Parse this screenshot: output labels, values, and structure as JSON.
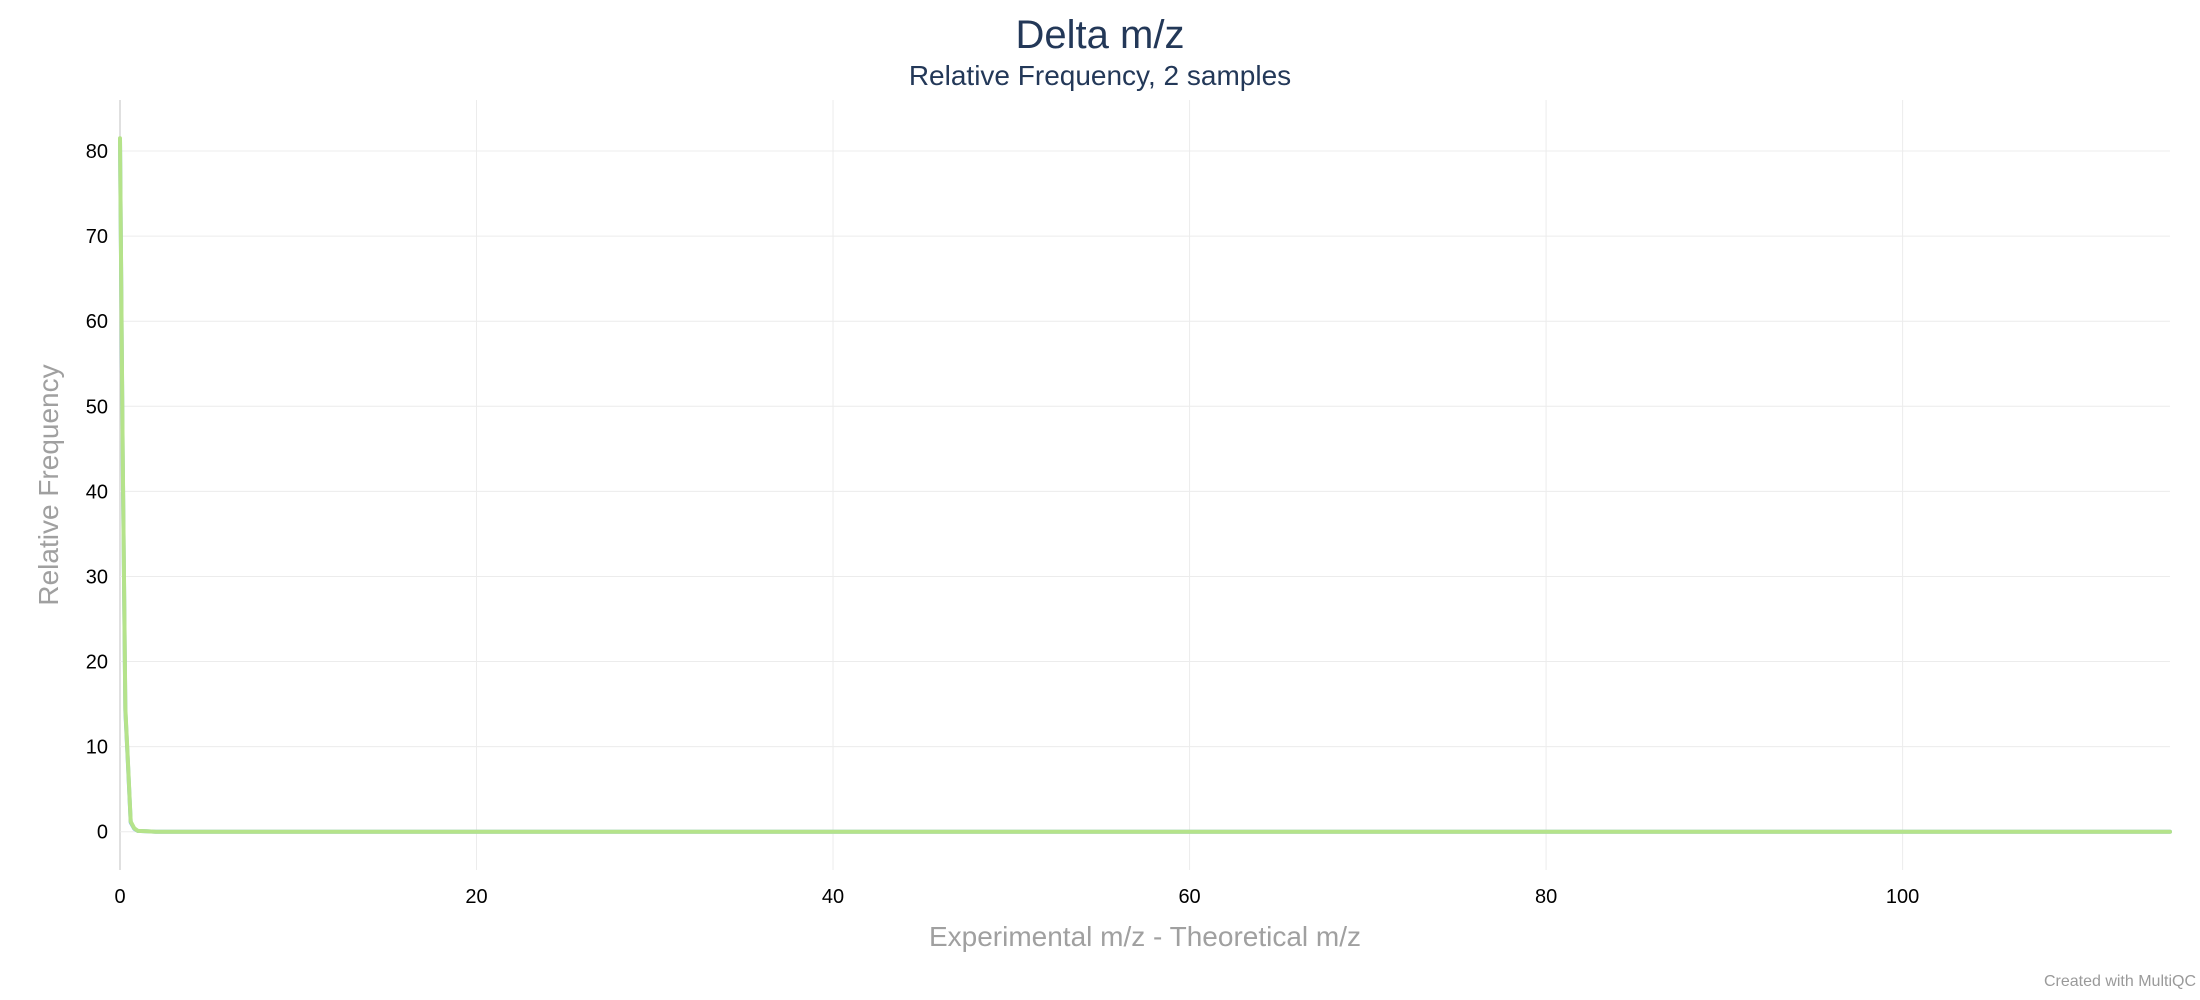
{
  "chart_data": {
    "type": "line",
    "title": "Delta m/z",
    "subtitle": "Relative Frequency, 2 samples",
    "xlabel": "Experimental m/z - Theoretical m/z",
    "ylabel": "Relative Frequency",
    "xlim": [
      0,
      115
    ],
    "ylim": [
      -4.5,
      86
    ],
    "x_ticks": [
      0,
      20,
      40,
      60,
      80,
      100
    ],
    "y_ticks": [
      0,
      10,
      20,
      30,
      40,
      50,
      60,
      70,
      80
    ],
    "grid": true,
    "legend": "none",
    "series": [
      {
        "color": "#b5e38a",
        "x": [
          0,
          0.15,
          0.3,
          0.45,
          0.6,
          0.8,
          1,
          1.5,
          2,
          5,
          10,
          20,
          40,
          60,
          80,
          100,
          115
        ],
        "y": [
          81.5,
          45,
          14.5,
          8,
          1.2,
          0.4,
          0.1,
          0.05,
          0,
          0,
          0,
          0,
          0,
          0,
          0,
          0,
          0
        ]
      },
      {
        "color": "#7cb5ec",
        "x": [
          0,
          0.15,
          0.3,
          0.45,
          0.6,
          0.8,
          1,
          1.5,
          2,
          5,
          10,
          20,
          40,
          60,
          80,
          100,
          115
        ],
        "y": [
          81.3,
          44.5,
          14.2,
          7.8,
          1.1,
          0.35,
          0.1,
          0.05,
          0,
          0,
          0,
          0,
          0,
          0,
          0,
          0,
          0
        ]
      }
    ]
  },
  "credit": "Created with MultiQC"
}
